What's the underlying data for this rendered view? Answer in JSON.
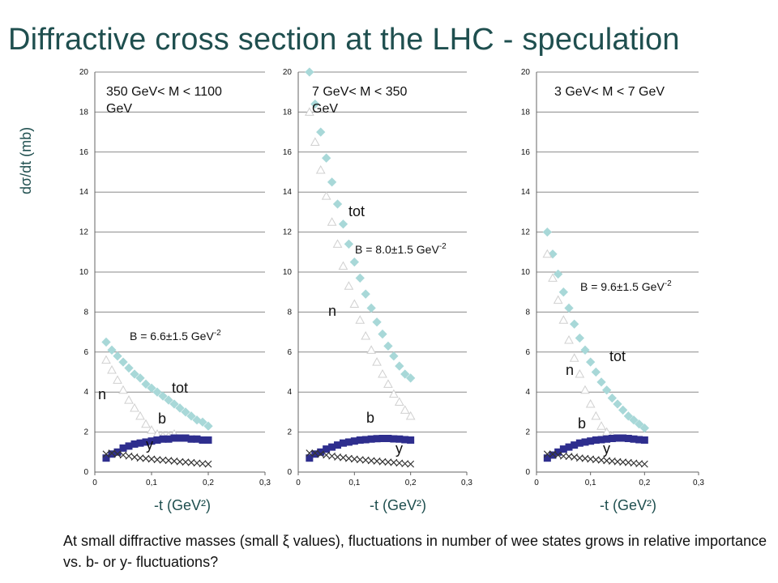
{
  "title": "Diffractive cross section at the LHC  - speculation",
  "ylabel": "dσ/dt (mb)",
  "caption": "At small diffractive masses (small ξ values), fluctuations in number of wee states grows in relative  importance vs. b- or y- fluctuations?",
  "colors": {
    "tot": "#a8d8d8",
    "n": "#ffffff",
    "b": "#2e2e8e",
    "y": "#333333",
    "grid": "#8a8a8a"
  },
  "chart_data": [
    {
      "type": "scatter",
      "panel_label": "350  GeV< M < 1100 GeV",
      "xlabel": "-t (GeV²)",
      "x_ticks": [
        "0",
        "0,1",
        "0,2",
        "0,3"
      ],
      "y_ticks": [
        "0",
        "2",
        "4",
        "6",
        "8",
        "10",
        "12",
        "14",
        "16",
        "18",
        "20"
      ],
      "xlim": [
        0,
        0.3
      ],
      "ylim": [
        0,
        20
      ],
      "b_slope_label": "B = 6.6±1.5 GeV",
      "b_slope_exp": "-2",
      "annotations": [
        "tot",
        "n",
        "b",
        "y"
      ],
      "series": [
        {
          "name": "tot",
          "x": [
            0.02,
            0.03,
            0.04,
            0.05,
            0.06,
            0.07,
            0.08,
            0.09,
            0.1,
            0.11,
            0.12,
            0.13,
            0.14,
            0.15,
            0.16,
            0.17,
            0.18,
            0.19,
            0.2
          ],
          "values": [
            6.5,
            6.1,
            5.8,
            5.5,
            5.2,
            4.9,
            4.7,
            4.4,
            4.2,
            4.0,
            3.8,
            3.6,
            3.4,
            3.2,
            3.0,
            2.8,
            2.6,
            2.5,
            2.3
          ]
        },
        {
          "name": "n",
          "x": [
            0.02,
            0.03,
            0.04,
            0.05,
            0.06,
            0.07,
            0.08,
            0.09,
            0.1,
            0.11,
            0.12,
            0.13,
            0.14
          ],
          "values": [
            5.6,
            5.1,
            4.6,
            4.1,
            3.6,
            3.2,
            2.8,
            2.4,
            2.1,
            1.9,
            1.8,
            1.8,
            1.9
          ]
        },
        {
          "name": "b",
          "x": [
            0.02,
            0.03,
            0.04,
            0.05,
            0.06,
            0.07,
            0.08,
            0.09,
            0.1,
            0.11,
            0.12,
            0.13,
            0.14,
            0.15,
            0.16,
            0.17,
            0.18,
            0.19,
            0.2
          ],
          "values": [
            0.7,
            0.9,
            1.0,
            1.2,
            1.3,
            1.4,
            1.45,
            1.5,
            1.55,
            1.6,
            1.65,
            1.65,
            1.7,
            1.7,
            1.7,
            1.65,
            1.65,
            1.6,
            1.6
          ]
        },
        {
          "name": "y",
          "x": [
            0.02,
            0.03,
            0.04,
            0.05,
            0.06,
            0.07,
            0.08,
            0.09,
            0.1,
            0.11,
            0.12,
            0.13,
            0.14,
            0.15,
            0.16,
            0.17,
            0.18,
            0.19,
            0.2
          ],
          "values": [
            0.9,
            0.95,
            0.9,
            0.85,
            0.8,
            0.75,
            0.7,
            0.68,
            0.65,
            0.62,
            0.6,
            0.58,
            0.55,
            0.52,
            0.5,
            0.48,
            0.45,
            0.42,
            0.4
          ]
        }
      ]
    },
    {
      "type": "scatter",
      "panel_label": "7  GeV< M < 350 GeV",
      "xlabel": "-t (GeV²)",
      "x_ticks": [
        "0",
        "0,1",
        "0,2",
        "0,3"
      ],
      "y_ticks": [
        "0",
        "2",
        "4",
        "6",
        "8",
        "10",
        "12",
        "14",
        "16",
        "18",
        "20"
      ],
      "xlim": [
        0,
        0.3
      ],
      "ylim": [
        0,
        20
      ],
      "b_slope_label": "B = 8.0±1.5 GeV",
      "b_slope_exp": "-2",
      "annotations": [
        "tot",
        "n",
        "b",
        "y"
      ],
      "series": [
        {
          "name": "tot",
          "x": [
            0.02,
            0.03,
            0.04,
            0.05,
            0.06,
            0.07,
            0.08,
            0.09,
            0.1,
            0.11,
            0.12,
            0.13,
            0.14,
            0.15,
            0.16,
            0.17,
            0.18,
            0.19,
            0.2
          ],
          "values": [
            20.0,
            18.4,
            17.0,
            15.7,
            14.5,
            13.4,
            12.4,
            11.4,
            10.5,
            9.7,
            8.9,
            8.2,
            7.5,
            6.9,
            6.3,
            5.8,
            5.3,
            4.9,
            4.7
          ]
        },
        {
          "name": "n",
          "x": [
            0.02,
            0.03,
            0.04,
            0.05,
            0.06,
            0.07,
            0.08,
            0.09,
            0.1,
            0.11,
            0.12,
            0.13,
            0.14,
            0.15,
            0.16,
            0.17,
            0.18,
            0.19,
            0.2
          ],
          "values": [
            18.0,
            16.5,
            15.1,
            13.8,
            12.5,
            11.4,
            10.3,
            9.3,
            8.4,
            7.6,
            6.8,
            6.1,
            5.5,
            4.9,
            4.4,
            3.9,
            3.5,
            3.1,
            2.8
          ]
        },
        {
          "name": "b",
          "x": [
            0.02,
            0.03,
            0.04,
            0.05,
            0.06,
            0.07,
            0.08,
            0.09,
            0.1,
            0.11,
            0.12,
            0.13,
            0.14,
            0.15,
            0.16,
            0.17,
            0.18,
            0.19,
            0.2
          ],
          "values": [
            0.7,
            0.9,
            1.0,
            1.15,
            1.25,
            1.35,
            1.45,
            1.5,
            1.55,
            1.6,
            1.62,
            1.65,
            1.67,
            1.68,
            1.68,
            1.66,
            1.65,
            1.62,
            1.6
          ]
        },
        {
          "name": "y",
          "x": [
            0.02,
            0.03,
            0.04,
            0.05,
            0.06,
            0.07,
            0.08,
            0.09,
            0.1,
            0.11,
            0.12,
            0.13,
            0.14,
            0.15,
            0.16,
            0.17,
            0.18,
            0.19,
            0.2
          ],
          "values": [
            0.95,
            0.95,
            0.9,
            0.85,
            0.8,
            0.75,
            0.72,
            0.68,
            0.65,
            0.62,
            0.6,
            0.57,
            0.55,
            0.52,
            0.5,
            0.48,
            0.45,
            0.42,
            0.4
          ]
        }
      ]
    },
    {
      "type": "scatter",
      "panel_label": "3  GeV< M < 7 GeV",
      "xlabel": "-t (GeV²)",
      "x_ticks": [
        "0",
        "0,1",
        "0,2",
        "0,3"
      ],
      "y_ticks": [
        "0",
        "2",
        "4",
        "6",
        "8",
        "10",
        "12",
        "14",
        "16",
        "18",
        "20"
      ],
      "xlim": [
        0,
        0.3
      ],
      "ylim": [
        0,
        20
      ],
      "b_slope_label": "B = 9.6±1.5 GeV",
      "b_slope_exp": "-2",
      "annotations": [
        "tot",
        "n",
        "b",
        "y"
      ],
      "series": [
        {
          "name": "tot",
          "x": [
            0.02,
            0.03,
            0.04,
            0.05,
            0.06,
            0.07,
            0.08,
            0.09,
            0.1,
            0.11,
            0.12,
            0.13,
            0.14,
            0.15,
            0.16,
            0.17,
            0.18,
            0.19,
            0.2
          ],
          "values": [
            12.0,
            10.9,
            9.9,
            9.0,
            8.2,
            7.4,
            6.7,
            6.1,
            5.5,
            5.0,
            4.5,
            4.1,
            3.7,
            3.4,
            3.1,
            2.8,
            2.6,
            2.4,
            2.2
          ]
        },
        {
          "name": "n",
          "x": [
            0.02,
            0.03,
            0.04,
            0.05,
            0.06,
            0.07,
            0.08,
            0.09,
            0.1,
            0.11,
            0.12,
            0.13,
            0.14
          ],
          "values": [
            10.9,
            9.7,
            8.6,
            7.6,
            6.6,
            5.7,
            4.9,
            4.1,
            3.4,
            2.8,
            2.3,
            2.0,
            1.8
          ]
        },
        {
          "name": "b",
          "x": [
            0.02,
            0.03,
            0.04,
            0.05,
            0.06,
            0.07,
            0.08,
            0.09,
            0.1,
            0.11,
            0.12,
            0.13,
            0.14,
            0.15,
            0.16,
            0.17,
            0.18,
            0.19,
            0.2
          ],
          "values": [
            0.7,
            0.85,
            1.0,
            1.15,
            1.25,
            1.35,
            1.45,
            1.5,
            1.55,
            1.6,
            1.62,
            1.65,
            1.68,
            1.7,
            1.7,
            1.68,
            1.65,
            1.62,
            1.6
          ]
        },
        {
          "name": "y",
          "x": [
            0.02,
            0.03,
            0.04,
            0.05,
            0.06,
            0.07,
            0.08,
            0.09,
            0.1,
            0.11,
            0.12,
            0.13,
            0.14,
            0.15,
            0.16,
            0.17,
            0.18,
            0.19,
            0.2
          ],
          "values": [
            0.9,
            0.9,
            0.85,
            0.8,
            0.78,
            0.75,
            0.7,
            0.68,
            0.65,
            0.62,
            0.6,
            0.57,
            0.55,
            0.52,
            0.5,
            0.48,
            0.45,
            0.42,
            0.4
          ]
        }
      ]
    }
  ]
}
